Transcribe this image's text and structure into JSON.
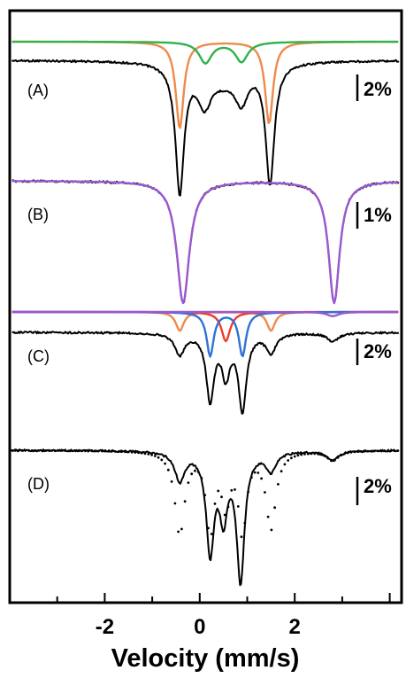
{
  "chart_data": {
    "type": "line",
    "xlabel": "Velocity (mm/s)",
    "xlim": [
      -4.0,
      4.25
    ],
    "xticks": [
      -2,
      0,
      2
    ],
    "grid": false,
    "panels": [
      {
        "label": "(A)",
        "scale_label": "2%",
        "series": [
          {
            "role": "data",
            "color": "#000000",
            "dips": [
              {
                "center": -0.42,
                "width": 0.22,
                "depth": 0.8
              },
              {
                "center": 1.48,
                "width": 0.22,
                "depth": 0.75
              },
              {
                "center": 0.1,
                "width": 0.35,
                "depth": 0.22
              },
              {
                "center": 0.88,
                "width": 0.35,
                "depth": 0.2
              },
              {
                "center": 0.5,
                "width": 0.9,
                "depth": 0.1
              }
            ]
          },
          {
            "role": "fit-component",
            "color": "#f08a4b",
            "dips": [
              {
                "center": -0.42,
                "width": 0.2,
                "depth": 0.7
              },
              {
                "center": 1.46,
                "width": 0.2,
                "depth": 0.66
              }
            ]
          },
          {
            "role": "fit-component",
            "color": "#2fb24a",
            "dips": [
              {
                "center": 0.12,
                "width": 0.32,
                "depth": 0.17
              },
              {
                "center": 0.88,
                "width": 0.32,
                "depth": 0.16
              }
            ]
          }
        ]
      },
      {
        "label": "(B)",
        "scale_label": "1%",
        "series": [
          {
            "role": "data",
            "color": "#000000",
            "dips": [
              {
                "center": -0.35,
                "width": 0.32,
                "depth": 0.95
              },
              {
                "center": 2.83,
                "width": 0.28,
                "depth": 0.95
              }
            ]
          },
          {
            "role": "fit",
            "color": "#9b59d0",
            "dips": [
              {
                "center": -0.35,
                "width": 0.32,
                "depth": 0.95
              },
              {
                "center": 2.83,
                "width": 0.28,
                "depth": 0.95
              }
            ]
          }
        ]
      },
      {
        "label": "(C)",
        "scale_label": "2%",
        "series": [
          {
            "role": "data",
            "color": "#000000",
            "dips": [
              {
                "center": -0.42,
                "width": 0.25,
                "depth": 0.2
              },
              {
                "center": 0.22,
                "width": 0.2,
                "depth": 0.62
              },
              {
                "center": 0.55,
                "width": 0.2,
                "depth": 0.38
              },
              {
                "center": 0.9,
                "width": 0.2,
                "depth": 0.72
              },
              {
                "center": 1.5,
                "width": 0.25,
                "depth": 0.18
              },
              {
                "center": 2.8,
                "width": 0.3,
                "depth": 0.08
              }
            ]
          },
          {
            "role": "fit-component",
            "color": "#f08a4b",
            "dips": [
              {
                "center": -0.42,
                "width": 0.2,
                "depth": 0.18
              },
              {
                "center": 1.5,
                "width": 0.2,
                "depth": 0.18
              }
            ]
          },
          {
            "role": "fit-component",
            "color": "#ee3b30",
            "dips": [
              {
                "center": 0.55,
                "width": 0.22,
                "depth": 0.28
              }
            ]
          },
          {
            "role": "fit-component",
            "color": "#2f72d6",
            "dips": [
              {
                "center": 0.22,
                "width": 0.18,
                "depth": 0.42
              },
              {
                "center": 0.9,
                "width": 0.18,
                "depth": 0.42
              }
            ]
          },
          {
            "role": "fit-component",
            "color": "#9b59d0",
            "dips": [
              {
                "center": 2.8,
                "width": 0.3,
                "depth": 0.04
              }
            ]
          }
        ]
      },
      {
        "label": "(D)",
        "scale_label": "2%",
        "series": [
          {
            "role": "data-solid",
            "color": "#000000",
            "dips": [
              {
                "center": -0.42,
                "width": 0.25,
                "depth": 0.18
              },
              {
                "center": 0.22,
                "width": 0.2,
                "depth": 0.62
              },
              {
                "center": 0.5,
                "width": 0.2,
                "depth": 0.38
              },
              {
                "center": 0.86,
                "width": 0.2,
                "depth": 0.8
              },
              {
                "center": 1.5,
                "width": 0.25,
                "depth": 0.12
              },
              {
                "center": 2.8,
                "width": 0.3,
                "depth": 0.06
              }
            ]
          },
          {
            "role": "data-dotted",
            "color": "#000000",
            "dips": [
              {
                "center": -0.42,
                "width": 0.25,
                "depth": 0.52
              },
              {
                "center": 0.22,
                "width": 0.2,
                "depth": 0.5
              },
              {
                "center": 0.55,
                "width": 0.2,
                "depth": 0.32
              },
              {
                "center": 0.9,
                "width": 0.2,
                "depth": 0.5
              },
              {
                "center": 1.5,
                "width": 0.25,
                "depth": 0.48
              },
              {
                "center": 2.8,
                "width": 0.3,
                "depth": 0.06
              }
            ]
          }
        ]
      }
    ]
  }
}
